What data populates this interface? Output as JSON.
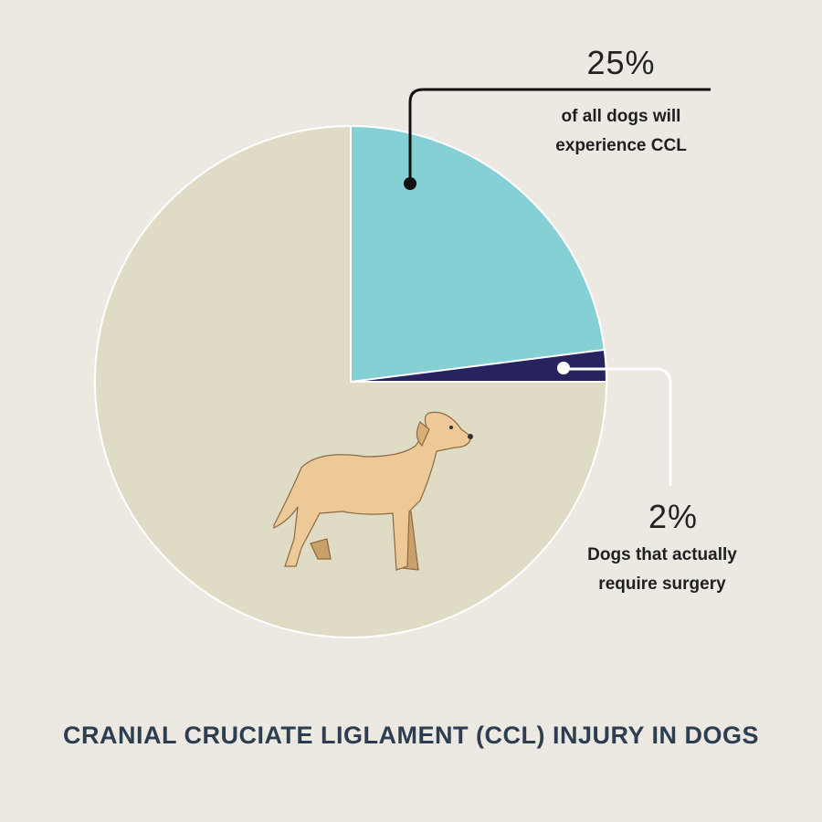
{
  "chart_data": {
    "type": "pie",
    "title": "CRANIAL CRUCIATE LIGLAMENT (CCL) INJURY IN DOGS",
    "categories": [
      "of all dogs will experience CCL",
      "Dogs that actually require surgery"
    ],
    "values": [
      25,
      2
    ],
    "value_labels": [
      "25%",
      "2%"
    ],
    "colors": [
      "#84d0d4",
      "#27235f"
    ],
    "nested": true
  }
}
